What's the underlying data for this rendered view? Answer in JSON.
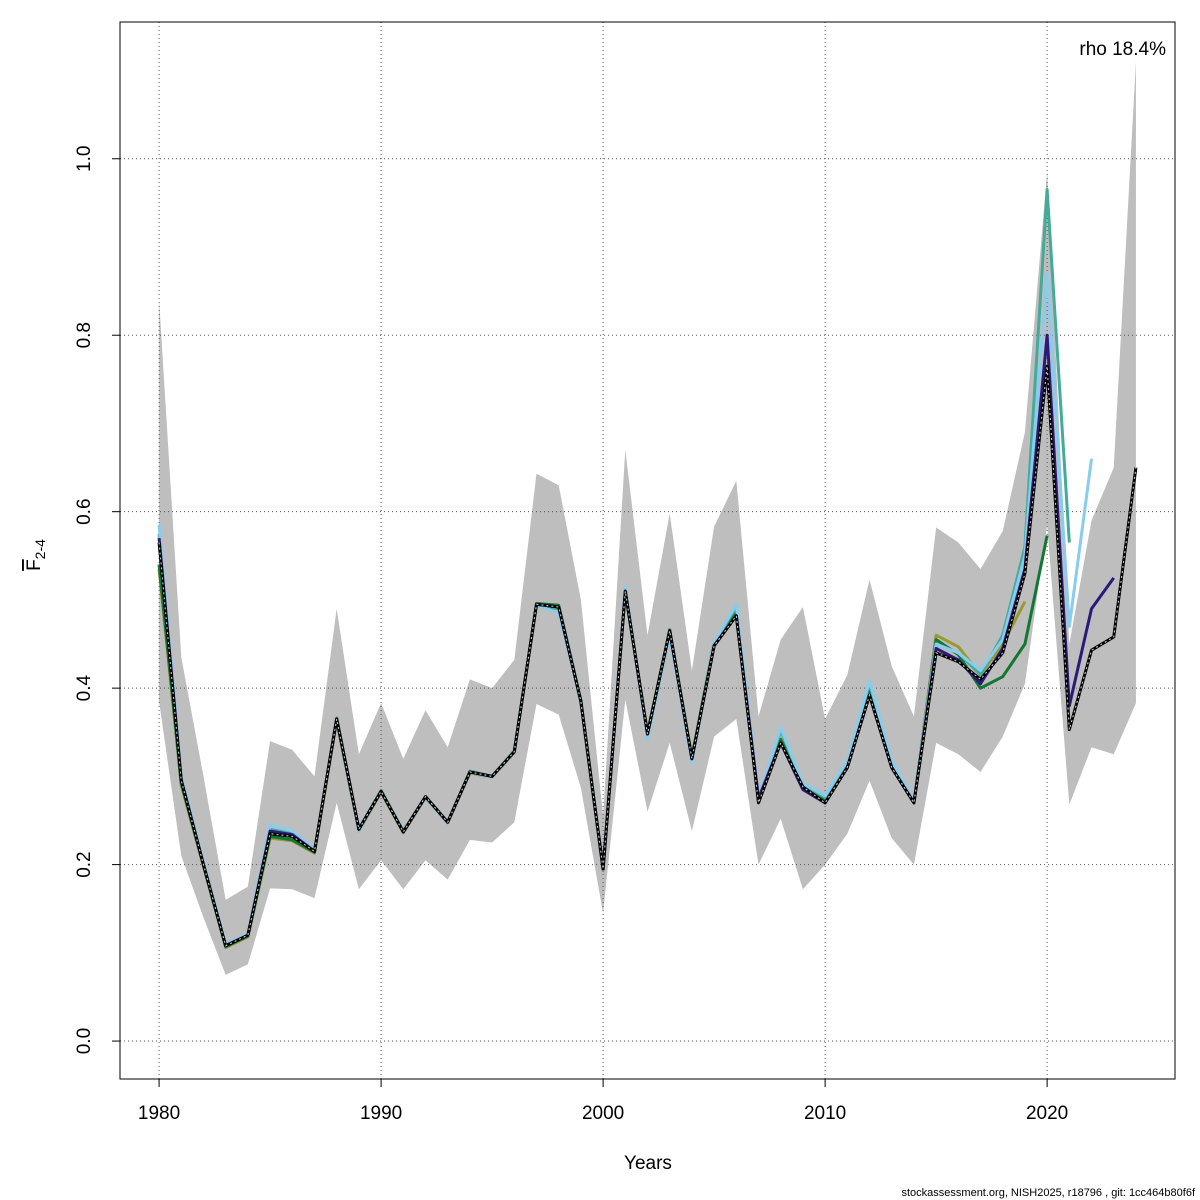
{
  "chart_data": {
    "type": "line",
    "annotation": "rho 18.4%",
    "xlabel": "Years",
    "ylabel": "F",
    "ylabel_sub": "2-4",
    "footer": "stockassessment.org, NISH2025, r18796 , git: 1cc464b80f6f",
    "x": [
      1980,
      1981,
      1982,
      1983,
      1984,
      1985,
      1986,
      1987,
      1988,
      1989,
      1990,
      1991,
      1992,
      1993,
      1994,
      1995,
      1996,
      1997,
      1998,
      1999,
      2000,
      2001,
      2002,
      2003,
      2004,
      2005,
      2006,
      2007,
      2008,
      2009,
      2010,
      2011,
      2012,
      2013,
      2014,
      2015,
      2016,
      2017,
      2018,
      2019,
      2020,
      2021,
      2022,
      2023,
      2024
    ],
    "band": {
      "color": "#bebebe",
      "upper": [
        0.84,
        0.435,
        0.3,
        0.16,
        0.175,
        0.34,
        0.33,
        0.3,
        0.49,
        0.325,
        0.383,
        0.32,
        0.375,
        0.333,
        0.41,
        0.4,
        0.432,
        0.643,
        0.63,
        0.5,
        0.255,
        0.67,
        0.46,
        0.598,
        0.42,
        0.583,
        0.635,
        0.368,
        0.455,
        0.492,
        0.365,
        0.415,
        0.523,
        0.425,
        0.368,
        0.582,
        0.565,
        0.535,
        0.578,
        0.69,
        0.985,
        0.45,
        0.59,
        0.65,
        1.11
      ],
      "lower": [
        0.385,
        0.21,
        0.14,
        0.075,
        0.087,
        0.173,
        0.172,
        0.162,
        0.27,
        0.172,
        0.205,
        0.172,
        0.205,
        0.183,
        0.228,
        0.225,
        0.248,
        0.382,
        0.37,
        0.287,
        0.145,
        0.387,
        0.26,
        0.338,
        0.238,
        0.345,
        0.365,
        0.2,
        0.252,
        0.172,
        0.2,
        0.235,
        0.295,
        0.23,
        0.2,
        0.338,
        0.325,
        0.305,
        0.345,
        0.405,
        0.585,
        0.268,
        0.333,
        0.325,
        0.383
      ]
    },
    "series": [
      {
        "color": "#999933",
        "values": [
          0.535,
          0.29,
          0.198,
          0.106,
          0.118,
          0.23,
          0.227,
          0.213,
          0.362,
          0.238,
          0.282,
          0.236,
          0.276,
          0.247,
          0.304,
          0.299,
          0.327,
          0.493,
          0.49,
          0.383,
          0.193,
          0.508,
          0.35,
          0.466,
          0.322,
          0.45,
          0.484,
          0.272,
          0.34,
          0.29,
          0.272,
          0.312,
          0.395,
          0.312,
          0.27,
          0.46,
          0.447,
          0.415,
          0.45,
          0.498,
          null,
          null,
          null,
          null,
          null
        ]
      },
      {
        "color": "#117733",
        "values": [
          0.54,
          0.292,
          0.199,
          0.107,
          0.119,
          0.232,
          0.228,
          0.214,
          0.366,
          0.24,
          0.284,
          0.237,
          0.277,
          0.248,
          0.305,
          0.3,
          0.328,
          0.496,
          0.494,
          0.386,
          0.196,
          0.509,
          0.349,
          0.466,
          0.321,
          0.452,
          0.485,
          0.273,
          0.342,
          0.291,
          0.273,
          0.314,
          0.398,
          0.314,
          0.271,
          0.455,
          0.438,
          0.4,
          0.413,
          0.45,
          0.573,
          null,
          null,
          null,
          null
        ]
      },
      {
        "color": "#44aa99",
        "values": [
          0.575,
          0.298,
          0.202,
          0.109,
          0.121,
          0.24,
          0.235,
          0.216,
          0.366,
          0.24,
          0.284,
          0.238,
          0.277,
          0.248,
          0.306,
          0.3,
          0.329,
          0.495,
          0.49,
          0.386,
          0.196,
          0.512,
          0.345,
          0.463,
          0.318,
          0.451,
          0.492,
          0.274,
          0.352,
          0.291,
          0.276,
          0.316,
          0.405,
          0.316,
          0.271,
          0.45,
          0.44,
          0.415,
          0.46,
          0.56,
          0.965,
          0.565,
          null,
          null,
          null
        ]
      },
      {
        "color": "#88ccee",
        "values": [
          0.585,
          0.3,
          0.203,
          0.11,
          0.122,
          0.245,
          0.238,
          0.217,
          0.364,
          0.238,
          0.283,
          0.237,
          0.276,
          0.247,
          0.305,
          0.299,
          0.328,
          0.494,
          0.485,
          0.384,
          0.194,
          0.515,
          0.342,
          0.46,
          0.315,
          0.452,
          0.495,
          0.275,
          0.355,
          0.292,
          0.278,
          0.318,
          0.408,
          0.318,
          0.272,
          0.45,
          0.44,
          0.42,
          0.455,
          0.55,
          0.87,
          0.47,
          0.66,
          null,
          null
        ]
      },
      {
        "color": "#2c1a7a",
        "values": [
          0.57,
          0.296,
          0.2,
          0.108,
          0.12,
          0.238,
          0.234,
          0.215,
          0.365,
          0.24,
          0.283,
          0.237,
          0.277,
          0.248,
          0.305,
          0.3,
          0.328,
          0.495,
          0.492,
          0.385,
          0.195,
          0.51,
          0.348,
          0.465,
          0.32,
          0.448,
          0.482,
          0.275,
          0.338,
          0.285,
          0.27,
          0.31,
          0.392,
          0.31,
          0.27,
          0.445,
          0.432,
          0.405,
          0.445,
          0.535,
          0.8,
          0.38,
          0.49,
          0.525,
          null
        ]
      },
      {
        "color": "#000000",
        "values": [
          0.565,
          0.295,
          0.2,
          0.108,
          0.12,
          0.235,
          0.232,
          0.215,
          0.365,
          0.24,
          0.283,
          0.237,
          0.277,
          0.248,
          0.305,
          0.3,
          0.328,
          0.495,
          0.492,
          0.385,
          0.195,
          0.51,
          0.348,
          0.465,
          0.32,
          0.448,
          0.482,
          0.27,
          0.338,
          0.288,
          0.27,
          0.31,
          0.392,
          0.31,
          0.27,
          0.44,
          0.43,
          0.41,
          0.44,
          0.53,
          0.765,
          0.353,
          0.443,
          0.458,
          0.65
        ]
      }
    ],
    "xlim": [
      1978.24,
      2025.76
    ],
    "ylim": [
      -0.043,
      1.155
    ],
    "xticks": [
      1980,
      1990,
      2000,
      2010,
      2020
    ],
    "yticks": [
      {
        "value": 0,
        "label": "0.0"
      },
      0.2,
      0.4,
      0.6,
      0.8,
      {
        "value": 1,
        "label": "1.0"
      }
    ],
    "grid": true
  }
}
